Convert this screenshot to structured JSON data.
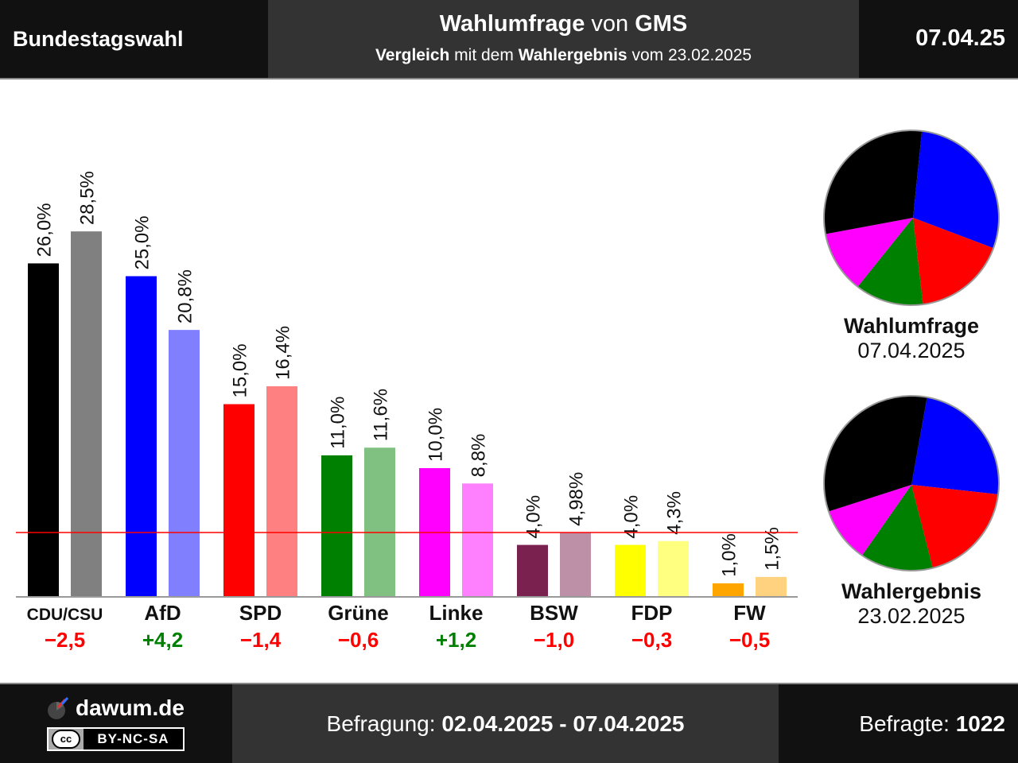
{
  "header": {
    "left_title": "Bundestagswahl",
    "title_bold": "Wahlumfrage",
    "title_mid": " von ",
    "title_institute": "GMS",
    "sub_bold1": "Vergleich",
    "sub_mid": " mit dem ",
    "sub_bold2": "Wahlergebnis",
    "sub_tail": " vom 23.02.2025",
    "date": "07.04.25"
  },
  "chart_data": {
    "type": "bar",
    "categories": [
      "CDU/CSU",
      "AfD",
      "SPD",
      "Grüne",
      "Linke",
      "BSW",
      "FDP",
      "FW"
    ],
    "series": [
      {
        "name": "Wahlumfrage",
        "values": [
          26.0,
          25.0,
          15.0,
          11.0,
          10.0,
          4.0,
          4.0,
          1.0
        ]
      },
      {
        "name": "Wahlergebnis",
        "values": [
          28.5,
          20.8,
          16.4,
          11.6,
          8.8,
          4.98,
          4.3,
          1.5
        ]
      }
    ],
    "value_labels": {
      "poll": [
        "26,0%",
        "25,0%",
        "15,0%",
        "11,0%",
        "10,0%",
        "4,0%",
        "4,0%",
        "1,0%"
      ],
      "result": [
        "28,5%",
        "20,8%",
        "16,4%",
        "11,6%",
        "8,8%",
        "4,98%",
        "4,3%",
        "1,5%"
      ]
    },
    "changes": [
      "−2,5",
      "+4,2",
      "−1,4",
      "−0,6",
      "+1,2",
      "−1,0",
      "−0,3",
      "−0,5"
    ],
    "change_colors": [
      "#ff0000",
      "#008000",
      "#ff0000",
      "#ff0000",
      "#008000",
      "#ff0000",
      "#ff0000",
      "#ff0000"
    ],
    "poll_colors": [
      "#000000",
      "#0000ff",
      "#ff0000",
      "#008000",
      "#ff00ff",
      "#7b2150",
      "#ffff00",
      "#ffa500"
    ],
    "result_colors": [
      "#808080",
      "#8080ff",
      "#ff8080",
      "#80c080",
      "#ff80ff",
      "#bd90a8",
      "#ffff80",
      "#ffd280"
    ],
    "threshold": 5,
    "threshold_color": "#ff0000",
    "ylim": [
      0,
      32
    ],
    "pies": [
      {
        "label": "Wahlumfrage",
        "date": "07.04.2025",
        "segments": [
          {
            "party": "AfD",
            "value": 25.0,
            "color": "#0000ff"
          },
          {
            "party": "SPD",
            "value": 15.0,
            "color": "#ff0000"
          },
          {
            "party": "Grüne",
            "value": 11.0,
            "color": "#008000"
          },
          {
            "party": "Linke",
            "value": 10.0,
            "color": "#ff00ff"
          },
          {
            "party": "CDU/CSU",
            "value": 26.0,
            "color": "#000000"
          }
        ]
      },
      {
        "label": "Wahlergebnis",
        "date": "23.02.2025",
        "segments": [
          {
            "party": "AfD",
            "value": 20.8,
            "color": "#0000ff"
          },
          {
            "party": "SPD",
            "value": 16.4,
            "color": "#ff0000"
          },
          {
            "party": "Grüne",
            "value": 11.6,
            "color": "#008000"
          },
          {
            "party": "Linke",
            "value": 8.8,
            "color": "#ff00ff"
          },
          {
            "party": "CDU/CSU",
            "value": 28.5,
            "color": "#000000"
          }
        ]
      }
    ]
  },
  "footer": {
    "logo": "dawum.de",
    "license": "BY-NC-SA",
    "license_icon": "cc",
    "period_label": "Befragung: ",
    "period_value": "02.04.2025 - 07.04.2025",
    "respondents_label": "Befragte: ",
    "respondents_value": "1022"
  }
}
